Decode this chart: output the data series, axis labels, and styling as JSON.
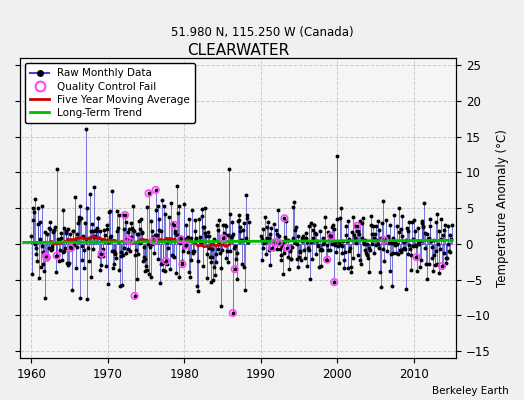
{
  "title": "CLEARWATER",
  "subtitle": "51.980 N, 115.250 W (Canada)",
  "credit": "Berkeley Earth",
  "ylabel_right": "Temperature Anomaly (°C)",
  "xlim": [
    1958.5,
    2015.5
  ],
  "ylim": [
    -16,
    26
  ],
  "yticks": [
    -15,
    -10,
    -5,
    0,
    5,
    10,
    15,
    20,
    25
  ],
  "xticks": [
    1960,
    1970,
    1980,
    1990,
    2000,
    2010
  ],
  "bg_color": "#f0f0f0",
  "plot_bg_color": "#f5f5f5",
  "raw_line_color": "#4444cc",
  "raw_dot_color": "#000000",
  "qc_color": "#ff44ff",
  "ma_color": "#cc0000",
  "trend_color": "#00bb00",
  "grid_color": "#cccccc",
  "seed": 17,
  "n_months_early": 336,
  "n_months_late": 300,
  "start_year": 1960.0,
  "gap_start": 1988.5,
  "gap_end": 1990.0,
  "late_start": 1990.0
}
